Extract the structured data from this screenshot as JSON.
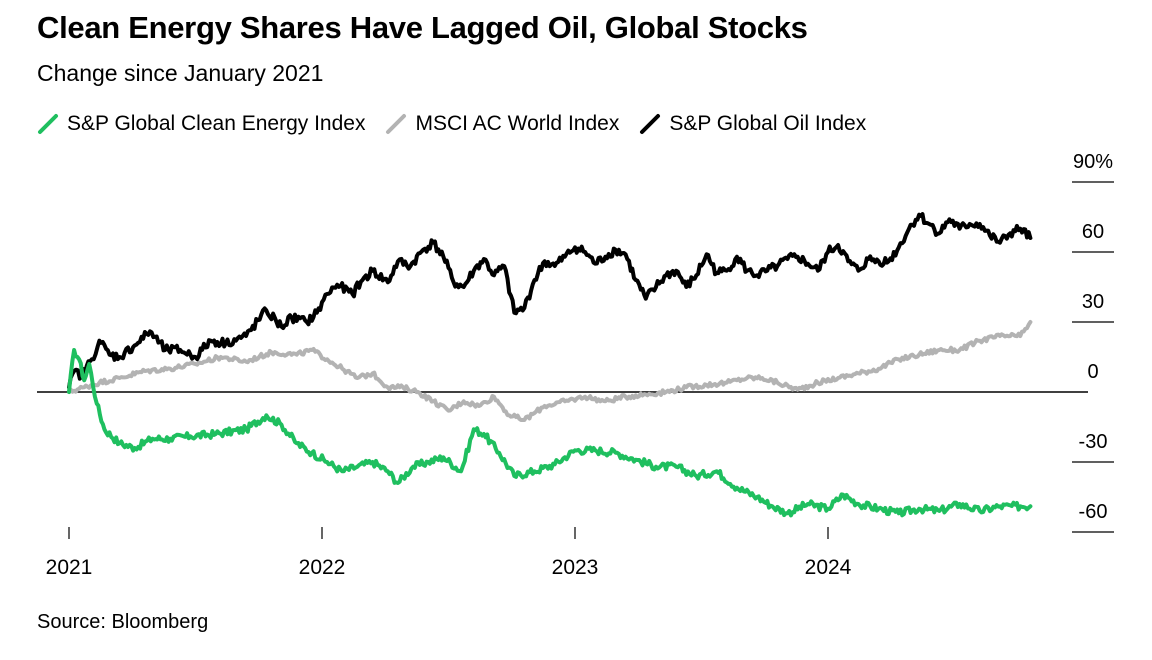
{
  "chart_data": {
    "type": "line",
    "title": "Clean Energy Shares Have Lagged Oil, Global Stocks",
    "subtitle": "Change since January 2021",
    "source": "Source: Bloomberg",
    "xlabel": "",
    "ylabel": "",
    "x_ticks": [
      "2021",
      "2022",
      "2023",
      "2024"
    ],
    "y_ticks": [
      "90%",
      "60",
      "30",
      "0",
      "-30",
      "-60"
    ],
    "y_tick_values": [
      90,
      60,
      30,
      0,
      -30,
      -60
    ],
    "ylim": [
      -65,
      90
    ],
    "xlim": [
      2021.0,
      2024.85
    ],
    "grid": false,
    "legend_position": "top-left",
    "x_unit": "year",
    "series": [
      {
        "name": "S&P Global Clean Energy Index",
        "color": "#1fbf5f",
        "x": [
          2021.0,
          2021.02,
          2021.04,
          2021.06,
          2021.08,
          2021.11,
          2021.14,
          2021.2,
          2021.26,
          2021.33,
          2021.4,
          2021.48,
          2021.58,
          2021.7,
          2021.78,
          2021.84,
          2021.9,
          2021.96,
          2022.02,
          2022.08,
          2022.14,
          2022.2,
          2022.26,
          2022.3,
          2022.36,
          2022.42,
          2022.48,
          2022.55,
          2022.6,
          2022.64,
          2022.7,
          2022.76,
          2022.84,
          2022.92,
          2023.0,
          2023.08,
          2023.16,
          2023.24,
          2023.32,
          2023.4,
          2023.48,
          2023.56,
          2023.64,
          2023.72,
          2023.78,
          2023.84,
          2023.92,
          2024.0,
          2024.06,
          2024.12,
          2024.2,
          2024.28,
          2024.36,
          2024.44,
          2024.52,
          2024.6,
          2024.68,
          2024.76,
          2024.8
        ],
        "values": [
          0,
          18,
          14,
          5,
          12,
          -5,
          -16,
          -22,
          -24,
          -20,
          -20,
          -19,
          -18,
          -16,
          -10,
          -14,
          -22,
          -26,
          -30,
          -34,
          -32,
          -30,
          -34,
          -39,
          -32,
          -30,
          -28,
          -34,
          -16,
          -18,
          -26,
          -36,
          -34,
          -31,
          -25,
          -25,
          -26,
          -29,
          -32,
          -32,
          -36,
          -34,
          -41,
          -45,
          -49,
          -52,
          -48,
          -50,
          -44,
          -48,
          -50,
          -52,
          -50,
          -51,
          -48,
          -51,
          -49,
          -49,
          -49
        ]
      },
      {
        "name": "MSCI AC World Index",
        "color": "#b3b3b3",
        "x": [
          2021.0,
          2021.06,
          2021.12,
          2021.2,
          2021.3,
          2021.4,
          2021.5,
          2021.6,
          2021.7,
          2021.8,
          2021.9,
          2021.96,
          2022.02,
          2022.08,
          2022.14,
          2022.2,
          2022.26,
          2022.32,
          2022.38,
          2022.44,
          2022.5,
          2022.56,
          2022.62,
          2022.68,
          2022.74,
          2022.8,
          2022.88,
          2022.96,
          2023.04,
          2023.12,
          2023.2,
          2023.28,
          2023.36,
          2023.44,
          2023.52,
          2023.6,
          2023.68,
          2023.74,
          2023.8,
          2023.88,
          2023.96,
          2024.04,
          2024.12,
          2024.2,
          2024.28,
          2024.36,
          2024.44,
          2024.52,
          2024.6,
          2024.68,
          2024.76,
          2024.8
        ],
        "values": [
          0,
          2,
          4,
          6,
          9,
          10,
          12,
          15,
          13,
          17,
          16,
          18,
          14,
          10,
          6,
          8,
          2,
          2,
          0,
          -4,
          -8,
          -4,
          -6,
          -2,
          -10,
          -12,
          -6,
          -4,
          -2,
          -4,
          -2,
          -1,
          0,
          2,
          3,
          4,
          6,
          6,
          4,
          1,
          4,
          6,
          8,
          10,
          14,
          16,
          18,
          18,
          22,
          24,
          24,
          30
        ]
      },
      {
        "name": "S&P Global Oil Index",
        "color": "#000000",
        "x": [
          2021.0,
          2021.02,
          2021.05,
          2021.09,
          2021.12,
          2021.16,
          2021.2,
          2021.26,
          2021.32,
          2021.38,
          2021.44,
          2021.5,
          2021.56,
          2021.62,
          2021.7,
          2021.78,
          2021.84,
          2021.88,
          2021.94,
          2021.98,
          2022.02,
          2022.06,
          2022.12,
          2022.16,
          2022.2,
          2022.26,
          2022.3,
          2022.35,
          2022.4,
          2022.44,
          2022.48,
          2022.52,
          2022.56,
          2022.6,
          2022.64,
          2022.68,
          2022.72,
          2022.76,
          2022.8,
          2022.84,
          2022.88,
          2022.92,
          2022.96,
          2023.0,
          2023.04,
          2023.08,
          2023.12,
          2023.16,
          2023.2,
          2023.24,
          2023.28,
          2023.32,
          2023.36,
          2023.4,
          2023.44,
          2023.48,
          2023.52,
          2023.56,
          2023.6,
          2023.64,
          2023.68,
          2023.72,
          2023.76,
          2023.8,
          2023.84,
          2023.88,
          2023.92,
          2023.96,
          2024.0,
          2024.04,
          2024.08,
          2024.12,
          2024.16,
          2024.2,
          2024.24,
          2024.28,
          2024.32,
          2024.36,
          2024.4,
          2024.44,
          2024.48,
          2024.52,
          2024.56,
          2024.6,
          2024.64,
          2024.68,
          2024.72,
          2024.76,
          2024.8
        ],
        "values": [
          2,
          9,
          7,
          14,
          22,
          16,
          15,
          20,
          26,
          18,
          18,
          15,
          22,
          21,
          24,
          35,
          28,
          32,
          30,
          34,
          42,
          46,
          42,
          48,
          52,
          47,
          56,
          54,
          61,
          64,
          58,
          47,
          45,
          52,
          57,
          50,
          54,
          34,
          36,
          48,
          56,
          54,
          58,
          62,
          60,
          55,
          58,
          61,
          59,
          48,
          40,
          45,
          50,
          52,
          45,
          50,
          59,
          51,
          52,
          58,
          52,
          50,
          52,
          54,
          57,
          58,
          55,
          52,
          60,
          63,
          56,
          52,
          57,
          56,
          56,
          62,
          70,
          76,
          72,
          68,
          74,
          70,
          72,
          72,
          67,
          64,
          68,
          70,
          66
        ]
      }
    ]
  }
}
